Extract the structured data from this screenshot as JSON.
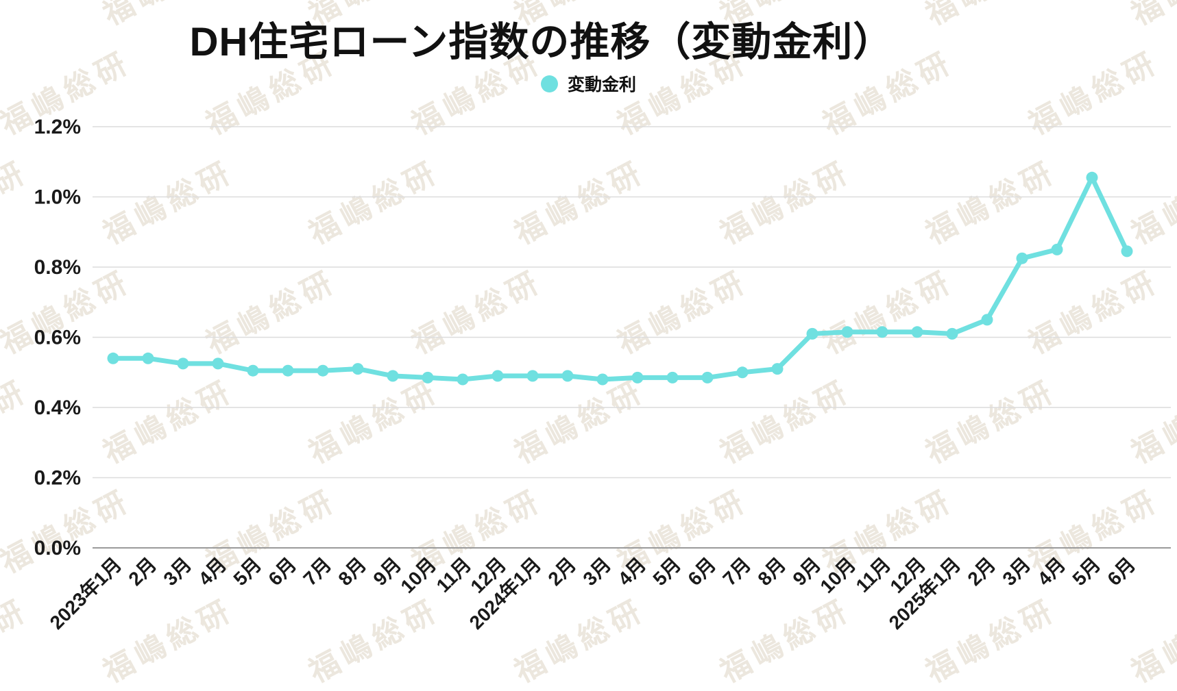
{
  "title": "DH住宅ローン指数の推移（変動金利）",
  "legend": {
    "label": "変動金利",
    "marker_color": "#6FE0E0"
  },
  "watermark": {
    "text": "福嶋総研",
    "color": "#ECE7DE"
  },
  "colors": {
    "line": "#6FE0E0",
    "marker": "#6FE0E0",
    "grid": "#DCDCDC",
    "axis": "#9A9A9A",
    "label_text": "#1A1A1A"
  },
  "chart_data": {
    "type": "line",
    "title": "DH住宅ローン指数の推移（変動金利）",
    "categories": [
      "2023年1月",
      "2月",
      "3月",
      "4月",
      "5月",
      "6月",
      "7月",
      "8月",
      "9月",
      "10月",
      "11月",
      "12月",
      "2024年1月",
      "2月",
      "3月",
      "4月",
      "5月",
      "6月",
      "7月",
      "8月",
      "9月",
      "10月",
      "11月",
      "12月",
      "2025年1月",
      "2月",
      "3月",
      "4月",
      "5月",
      "6月"
    ],
    "series": [
      {
        "name": "変動金利",
        "values": [
          0.54,
          0.54,
          0.525,
          0.525,
          0.505,
          0.505,
          0.505,
          0.51,
          0.49,
          0.485,
          0.48,
          0.49,
          0.49,
          0.49,
          0.48,
          0.485,
          0.485,
          0.485,
          0.5,
          0.51,
          0.61,
          0.615,
          0.615,
          0.615,
          0.61,
          0.65,
          0.825,
          0.85,
          1.055,
          0.845
        ]
      }
    ],
    "xlabel": "",
    "ylabel": "",
    "ylim": [
      0,
      1.2
    ],
    "ytick_step": 0.2,
    "ytick_suffix": "%",
    "grid": true,
    "legend_position": "top",
    "x_labels_rotated": true
  }
}
